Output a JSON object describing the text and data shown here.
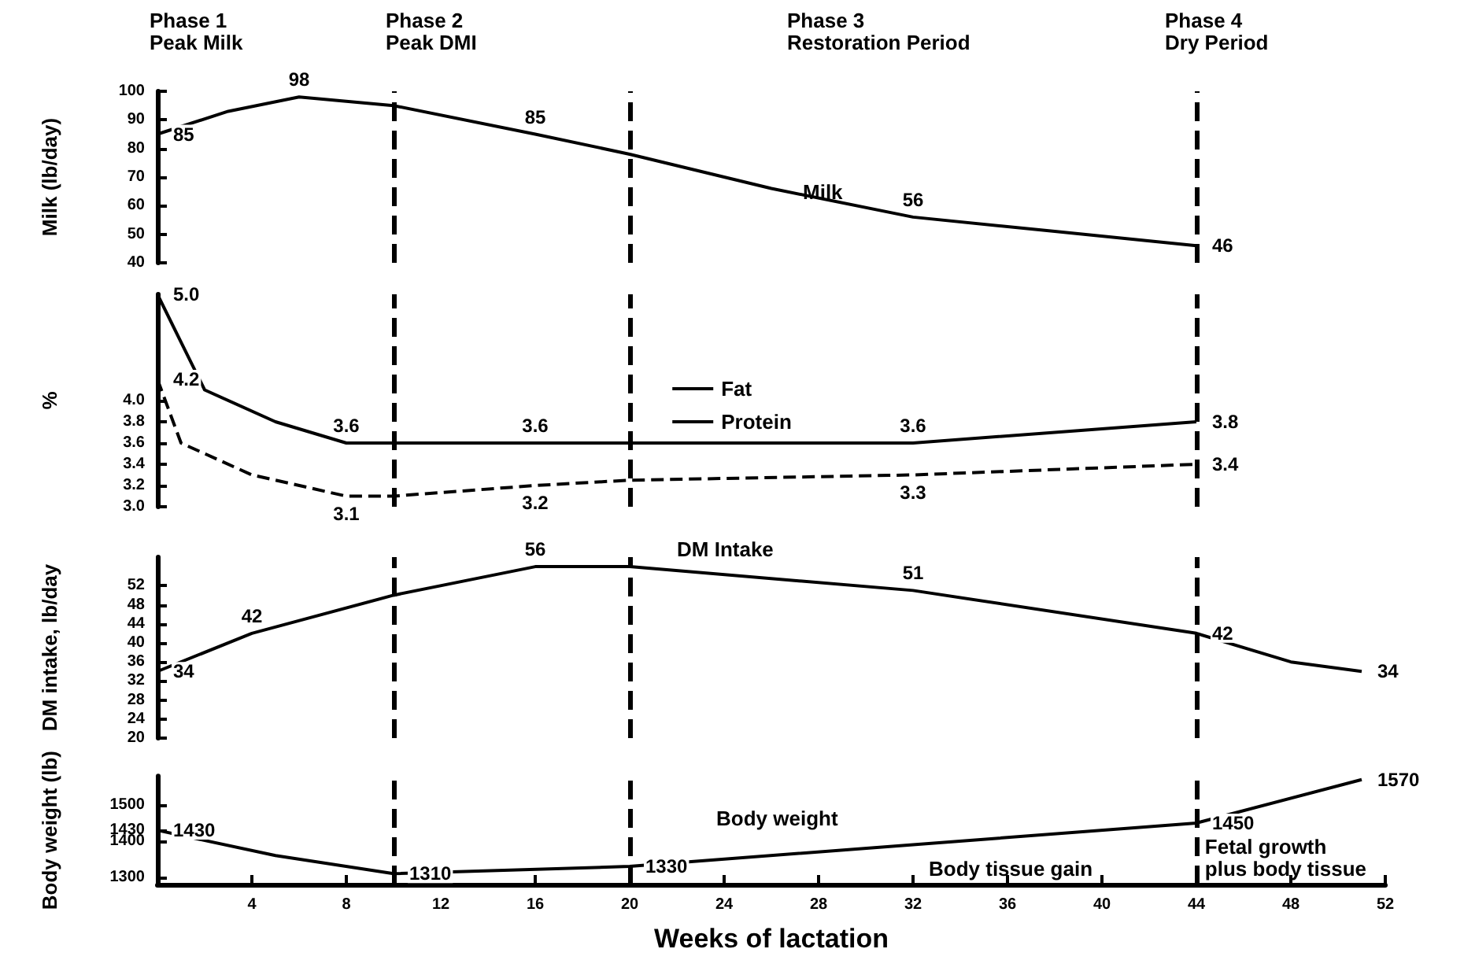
{
  "chart_data": [
    {
      "type": "line",
      "ylabel": "Milk (lb/day)",
      "tick_labels": "y",
      "xlim": [
        0,
        52
      ],
      "xticks": [
        4,
        8,
        12,
        16,
        20,
        24,
        28,
        32,
        36,
        40,
        44,
        48,
        52
      ],
      "ylim": [
        40,
        100
      ],
      "yticks": [
        40,
        50,
        60,
        70,
        80,
        90,
        100
      ],
      "series": [
        {
          "color": "#000000",
          "line_style": "solid",
          "x": [
            0,
            3,
            6,
            10,
            16,
            20,
            26,
            32,
            38,
            44
          ],
          "values": [
            85,
            93,
            98,
            95,
            85,
            78,
            66,
            56,
            51,
            46
          ],
          "value_labels": [
            "85",
            null,
            "98",
            null,
            "85",
            null,
            null,
            "56",
            null,
            "46"
          ]
        }
      ],
      "annotations": [
        "Phase 1\nPeak Milk",
        "Phase 2\nPeak DMI",
        "Phase 3\nRestoration Period",
        "Phase 4\nDry Period",
        "Milk"
      ],
      "ref_lines": [
        {
          "axis": "x",
          "value": 10,
          "color": "#000000",
          "line_style": "dashed"
        },
        {
          "axis": "x",
          "value": 20,
          "color": "#000000",
          "line_style": "dashed"
        },
        {
          "axis": "x",
          "value": 44,
          "color": "#000000",
          "line_style": "dashed"
        }
      ]
    },
    {
      "type": "line",
      "ylabel": "%",
      "tick_labels": "y",
      "xlim": [
        0,
        52
      ],
      "xticks": [
        4,
        8,
        12,
        16,
        20,
        24,
        28,
        32,
        36,
        40,
        44,
        48,
        52
      ],
      "ylim": [
        3,
        5
      ],
      "yticks": [
        {
          "value": 3,
          "label": "3.0"
        },
        {
          "value": 3.2,
          "label": "3.2"
        },
        {
          "value": 3.4,
          "label": "3.4"
        },
        {
          "value": 3.6,
          "label": "3.6"
        },
        {
          "value": 3.8,
          "label": "3.8"
        },
        {
          "value": 4,
          "label": "4.0"
        }
      ],
      "legend": "center",
      "series": [
        {
          "name": "Fat",
          "color": "#000000",
          "line_style": "solid",
          "x": [
            0,
            2,
            5,
            8,
            10,
            16,
            20,
            32,
            44
          ],
          "values": [
            5.0,
            4.1,
            3.8,
            3.6,
            3.6,
            3.6,
            3.6,
            3.6,
            3.8
          ],
          "value_labels": [
            "5.0",
            null,
            null,
            "3.6",
            null,
            "3.6",
            null,
            "3.6",
            "3.8"
          ]
        },
        {
          "name": "Protein",
          "color": "#000000",
          "line_style": "dashed",
          "x": [
            0,
            1,
            4,
            8,
            10,
            16,
            20,
            32,
            44
          ],
          "values": [
            4.2,
            3.6,
            3.3,
            3.1,
            3.1,
            3.2,
            3.25,
            3.3,
            3.4
          ],
          "value_labels": [
            "4.2",
            null,
            null,
            "3.1",
            null,
            "3.2",
            null,
            "3.3",
            "3.4"
          ]
        }
      ],
      "ref_lines": [
        {
          "axis": "x",
          "value": 10,
          "color": "#000000",
          "line_style": "dashed"
        },
        {
          "axis": "x",
          "value": 20,
          "color": "#000000",
          "line_style": "dashed"
        },
        {
          "axis": "x",
          "value": 44,
          "color": "#000000",
          "line_style": "dashed"
        }
      ]
    },
    {
      "type": "line",
      "ylabel": "DM intake, lb/day",
      "tick_labels": "y",
      "xlim": [
        0,
        52
      ],
      "xticks": [
        4,
        8,
        12,
        16,
        20,
        24,
        28,
        32,
        36,
        40,
        44,
        48,
        52
      ],
      "ylim": [
        20,
        58
      ],
      "yticks": [
        20,
        24,
        28,
        32,
        36,
        40,
        44,
        48,
        52
      ],
      "series": [
        {
          "color": "#000000",
          "line_style": "solid",
          "x": [
            0,
            4,
            10,
            16,
            20,
            32,
            44,
            48,
            51
          ],
          "values": [
            34,
            42,
            50,
            56,
            56,
            51,
            42,
            36,
            34
          ],
          "value_labels": [
            "34",
            "42",
            null,
            "56",
            null,
            "51",
            "42",
            null,
            "34"
          ]
        }
      ],
      "annotations": [
        "DM Intake"
      ],
      "ref_lines": [
        {
          "axis": "x",
          "value": 10,
          "color": "#000000",
          "line_style": "dashed"
        },
        {
          "axis": "x",
          "value": 20,
          "color": "#000000",
          "line_style": "dashed"
        },
        {
          "axis": "x",
          "value": 44,
          "color": "#000000",
          "line_style": "dashed"
        }
      ]
    },
    {
      "type": "line",
      "ylabel": "Body weight (lb)",
      "xlabel": "Weeks of lactation",
      "xlim": [
        0,
        52
      ],
      "xticks": [
        4,
        8,
        12,
        16,
        20,
        24,
        28,
        32,
        36,
        40,
        44,
        48,
        52
      ],
      "ylim": [
        1280,
        1580
      ],
      "yticks": [
        1300,
        1400,
        1430,
        1500
      ],
      "series": [
        {
          "color": "#000000",
          "line_style": "solid",
          "x": [
            0,
            5,
            10,
            20,
            32,
            44,
            51
          ],
          "values": [
            1430,
            1360,
            1310,
            1330,
            1390,
            1450,
            1570
          ],
          "value_labels": [
            "1430",
            null,
            "1310",
            "1330",
            null,
            "1450",
            "1570"
          ]
        }
      ],
      "annotations": [
        "Body weight",
        "Body tissue gain",
        "Fetal growth\nplus body tissue"
      ],
      "ref_lines": [
        {
          "axis": "x",
          "value": 10,
          "color": "#000000",
          "line_style": "dashed"
        },
        {
          "axis": "x",
          "value": 20,
          "color": "#000000",
          "line_style": "dashed"
        },
        {
          "axis": "x",
          "value": 44,
          "color": "#000000",
          "line_style": "dashed"
        }
      ]
    }
  ]
}
